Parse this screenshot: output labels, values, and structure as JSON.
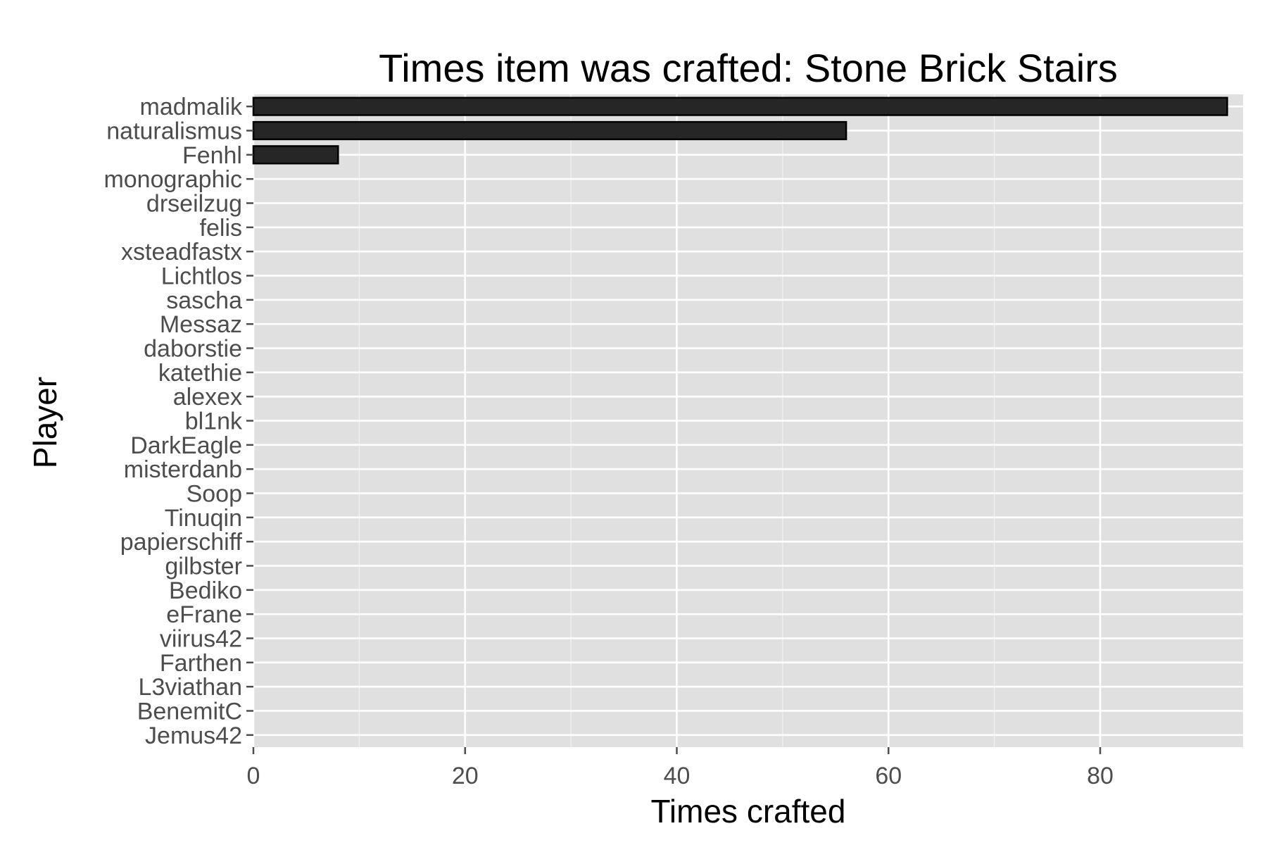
{
  "chart_data": {
    "type": "bar",
    "orientation": "horizontal",
    "title": "Times item was crafted: Stone Brick Stairs",
    "xlabel": "Times crafted",
    "ylabel": "Player",
    "xlim": [
      0,
      93.5
    ],
    "xticks": [
      0,
      20,
      40,
      60,
      80
    ],
    "grid": true,
    "legend": "none",
    "colors": {
      "panel": "#e0e0e0",
      "grid": "#ffffff",
      "bar_fill": "#262626",
      "bar_outline": "#000000",
      "tick_text": "#4d4d4d"
    },
    "categories": [
      "madmalik",
      "naturalismus",
      "Fenhl",
      "monographic",
      "drseilzug",
      "felis",
      "xsteadfastx",
      "Lichtlos",
      "sascha",
      "Messaz",
      "daborstie",
      "katethie",
      "alexex",
      "bl1nk",
      "DarkEagle",
      "misterdanb",
      "Soop",
      "Tinuqin",
      "papierschiff",
      "gilbster",
      "Bediko",
      "eFrane",
      "viirus42",
      "Farthen",
      "L3viathan",
      "BenemitC",
      "Jemus42"
    ],
    "values": [
      92,
      56,
      8,
      0,
      0,
      0,
      0,
      0,
      0,
      0,
      0,
      0,
      0,
      0,
      0,
      0,
      0,
      0,
      0,
      0,
      0,
      0,
      0,
      0,
      0,
      0,
      0
    ]
  }
}
